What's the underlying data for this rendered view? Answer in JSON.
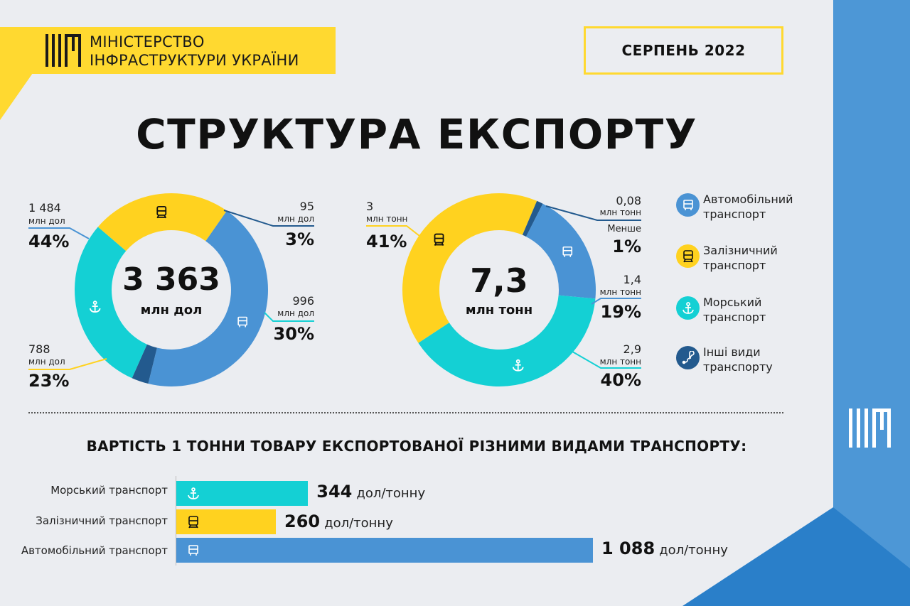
{
  "header": {
    "ministry_line1": "МІНІСТЕРСТВО",
    "ministry_line2": "ІНФРАСТРУКТУРИ УКРАЇНИ",
    "period": "СЕРПЕНЬ 2022"
  },
  "title": "СТРУКТУРА ЕКСПОРТУ",
  "colors": {
    "road": "#4a93d4",
    "rail": "#ffd21f",
    "sea": "#14d0d4",
    "other": "#235a8e",
    "brand_yellow": "#ffd930",
    "brand_blue": "#4d97d6"
  },
  "icons": {
    "road": "truck-icon",
    "rail": "train-icon",
    "sea": "anchor-icon",
    "other": "route-icon"
  },
  "chart_data": [
    {
      "type": "pie",
      "variant": "donut",
      "center_value": "3 363",
      "center_unit": "млн дол",
      "slices": [
        {
          "key": "road",
          "value": 1484,
          "value_label": "1 484",
          "unit": "млн дол",
          "percent": "44%"
        },
        {
          "key": "other",
          "value": 95,
          "value_label": "95",
          "unit": "млн дол",
          "percent": "3%"
        },
        {
          "key": "sea",
          "value": 996,
          "value_label": "996",
          "unit": "млн дол",
          "percent": "30%"
        },
        {
          "key": "rail",
          "value": 788,
          "value_label": "788",
          "unit": "млн дол",
          "percent": "23%"
        }
      ]
    },
    {
      "type": "pie",
      "variant": "donut",
      "center_value": "7,3",
      "center_unit": "млн тонн",
      "slices": [
        {
          "key": "other",
          "value": 0.08,
          "value_label": "0,08",
          "unit": "млн тонн",
          "percent": "1%",
          "note": "Менше"
        },
        {
          "key": "road",
          "value": 1.4,
          "value_label": "1,4",
          "unit": "млн тонн",
          "percent": "19%"
        },
        {
          "key": "sea",
          "value": 2.9,
          "value_label": "2,9",
          "unit": "млн тонн",
          "percent": "40%"
        },
        {
          "key": "rail",
          "value": 3,
          "value_label": "3",
          "unit": "млн тонн",
          "percent": "41%"
        }
      ]
    },
    {
      "type": "bar",
      "orientation": "horizontal",
      "title": "ВАРТІСТЬ 1 ТОННИ ТОВАРУ ЕКСПОРТОВАНОЇ РІЗНИМИ ВИДАМИ ТРАНСПОРТУ:",
      "unit": "дол/тонну",
      "bars": [
        {
          "key": "sea",
          "label": "Морський транспорт",
          "value": 344,
          "value_label": "344"
        },
        {
          "key": "rail",
          "label": "Залізничний транспорт",
          "value": 260,
          "value_label": "260"
        },
        {
          "key": "road",
          "label": "Автомобільний транспорт",
          "value": 1088,
          "value_label": "1 088"
        }
      ]
    }
  ],
  "legend": [
    {
      "key": "road",
      "line1": "Автомобільний",
      "line2": "транспорт"
    },
    {
      "key": "rail",
      "line1": "Залізничний",
      "line2": "транспорт"
    },
    {
      "key": "sea",
      "line1": "Морський",
      "line2": "транспорт"
    },
    {
      "key": "other",
      "line1": "Інші види",
      "line2": "транспорту"
    }
  ]
}
